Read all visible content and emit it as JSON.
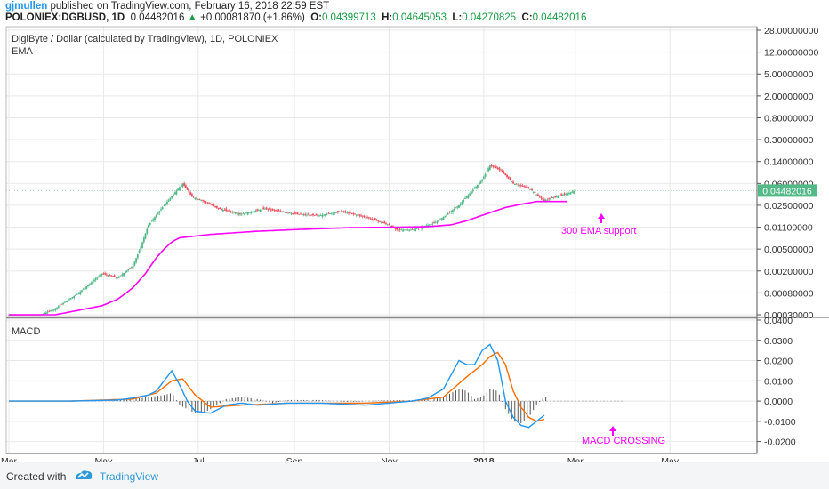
{
  "header": {
    "author": "gjmullen",
    "published": "published on TradingView.com, February 16, 2018 22:59 EST",
    "symbol": "POLONIEX:DGBUSD, 1D",
    "last": "0.04482016",
    "change": "+0.00081870 (+1.86%)",
    "o_label": "O:",
    "o": "0.04399713",
    "h_label": "H:",
    "h": "0.04645053",
    "l_label": "L:",
    "l": "0.04270825",
    "c_label": "C:",
    "c": "0.04482016"
  },
  "footer": {
    "created_with": "Created with",
    "brand": "TradingView"
  },
  "colors": {
    "up": "#53b987",
    "down": "#eb4d5c",
    "ema": "#ff00ff",
    "macd": "#2196f3",
    "signal": "#ff6d00",
    "hist": "#555555",
    "grid": "#e8e8e8",
    "annot": "#e91e63"
  },
  "chart_data": [
    {
      "type": "line",
      "title": "DigiByte / Dollar (calculated by TradingView), 1D, POLONIEX",
      "indicator": "EMA",
      "scale": "log",
      "price_label": "0.04482016",
      "y_ticks": [
        "28.00000000",
        "12.00000000",
        "5.00000000",
        "2.00000000",
        "0.80000000",
        "0.30000000",
        "0.14000000",
        "0.06000000",
        "0.02500000",
        "0.01100000",
        "0.00500000",
        "0.00200000",
        "0.00080000",
        "0.00030000"
      ],
      "x_ticks": [
        "Mar",
        "May",
        "Jul",
        "Sep",
        "Nov",
        "2018",
        "Mar",
        "May"
      ],
      "series": [
        {
          "kind": "price",
          "t": [
            0,
            15,
            30,
            45,
            60,
            70,
            80,
            90,
            100,
            108,
            112,
            118,
            125,
            135,
            150,
            165,
            185,
            200,
            215,
            230,
            245,
            250,
            260,
            275,
            290,
            305,
            310,
            317,
            325,
            335,
            345,
            352,
            360,
            365
          ],
          "values": [
            0.0003,
            0.00025,
            0.0004,
            0.0008,
            0.0018,
            0.0015,
            0.0025,
            0.012,
            0.025,
            0.045,
            0.06,
            0.035,
            0.03,
            0.022,
            0.018,
            0.022,
            0.018,
            0.017,
            0.02,
            0.016,
            0.012,
            0.01,
            0.01,
            0.013,
            0.025,
            0.07,
            0.12,
            0.1,
            0.06,
            0.05,
            0.03,
            0.035,
            0.04,
            0.045
          ]
        },
        {
          "kind": "ema",
          "annotation": "300 EMA support",
          "t": [
            0,
            30,
            60,
            70,
            80,
            88,
            95,
            100,
            105,
            110,
            130,
            160,
            190,
            220,
            250,
            270,
            285,
            295,
            310,
            320,
            330,
            340,
            346,
            360
          ],
          "values": [
            0.0003,
            0.0003,
            0.00045,
            0.0006,
            0.001,
            0.0018,
            0.0035,
            0.005,
            0.0065,
            0.0075,
            0.0085,
            0.0095,
            0.0102,
            0.0108,
            0.011,
            0.0112,
            0.012,
            0.014,
            0.019,
            0.023,
            0.026,
            0.029,
            0.029,
            0.029
          ]
        }
      ]
    },
    {
      "type": "line",
      "title": "MACD",
      "ylim": [
        -0.025,
        0.04
      ],
      "y_ticks": [
        "0.0400",
        "0.0300",
        "0.0200",
        "0.0100",
        "0.0000",
        "-0.0100",
        "-0.0200"
      ],
      "annotation": "MACD CROSSING",
      "series": [
        {
          "kind": "macd",
          "t": [
            0,
            40,
            70,
            80,
            90,
            95,
            100,
            105,
            110,
            115,
            120,
            130,
            140,
            150,
            160,
            180,
            200,
            230,
            260,
            270,
            280,
            290,
            295,
            300,
            305,
            310,
            315,
            320,
            325,
            330,
            335,
            340,
            345
          ],
          "values": [
            0,
            0,
            0.0005,
            0.0015,
            0.003,
            0.005,
            0.01,
            0.015,
            0.008,
            0.0,
            -0.005,
            -0.006,
            -0.002,
            -0.001,
            -0.002,
            -0.001,
            -0.001,
            -0.002,
            0.0,
            0.0015,
            0.006,
            0.02,
            0.018,
            0.018,
            0.025,
            0.028,
            0.02,
            0.0,
            -0.008,
            -0.012,
            -0.013,
            -0.01,
            -0.007
          ]
        },
        {
          "kind": "signal",
          "t": [
            0,
            40,
            80,
            95,
            105,
            112,
            120,
            130,
            150,
            180,
            230,
            260,
            280,
            295,
            305,
            310,
            315,
            320,
            325,
            330,
            335,
            340,
            345
          ],
          "values": [
            0,
            0,
            0.001,
            0.004,
            0.01,
            0.011,
            0.003,
            -0.003,
            -0.002,
            -0.001,
            -0.001,
            0.0,
            0.002,
            0.012,
            0.018,
            0.022,
            0.024,
            0.018,
            0.005,
            -0.003,
            -0.008,
            -0.01,
            -0.009
          ]
        },
        {
          "kind": "hist",
          "t": [
            60,
            70,
            80,
            90,
            100,
            105,
            110,
            115,
            120,
            125,
            130,
            140,
            150,
            160,
            170,
            180,
            200,
            220,
            240,
            260,
            270,
            280,
            290,
            295,
            300,
            305,
            310,
            315,
            320,
            325,
            330,
            335,
            340,
            345
          ],
          "values": [
            0,
            0.0005,
            0.001,
            0.002,
            0.003,
            0.004,
            -0.002,
            -0.004,
            -0.006,
            -0.006,
            -0.004,
            0.001,
            0.002,
            0.001,
            -0.001,
            0.0005,
            0.0005,
            -0.0005,
            0.0003,
            0.0005,
            0.001,
            0.002,
            0.006,
            0.005,
            0.001,
            0.002,
            0.006,
            0.005,
            -0.004,
            -0.01,
            -0.011,
            -0.008,
            -0.002,
            0.002
          ]
        }
      ]
    }
  ]
}
